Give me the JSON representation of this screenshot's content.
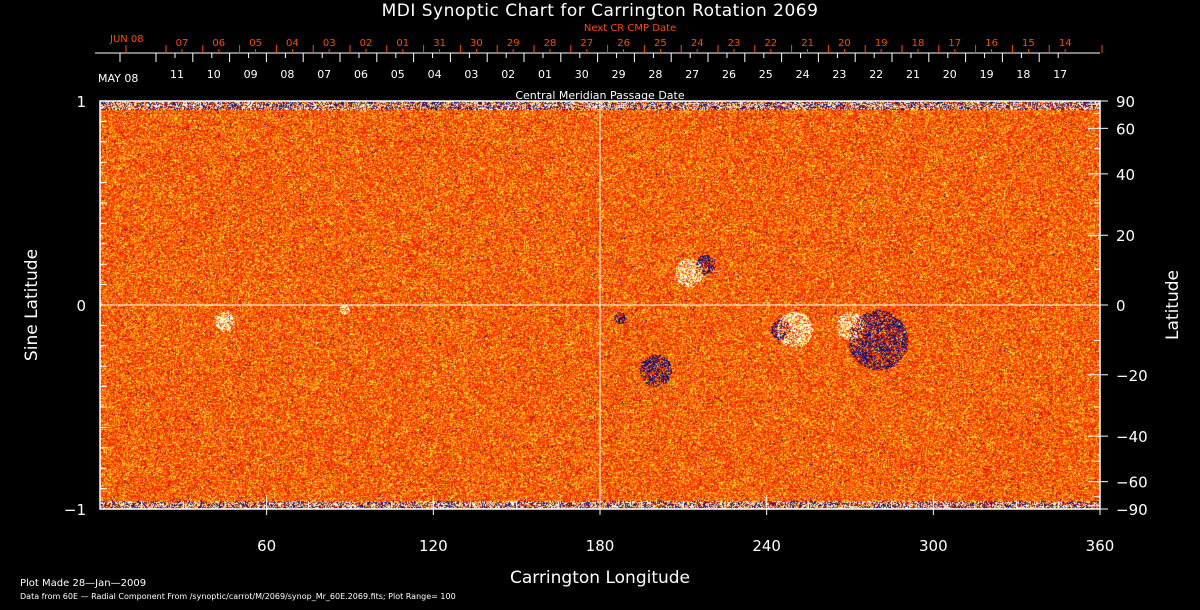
{
  "chart_data": {
    "type": "heatmap",
    "title": "MDI Synoptic Chart for Carrington Rotation 2069",
    "xlabel": "Carrington Longitude",
    "ylabel": "Sine Latitude",
    "y2label": "Latitude",
    "xlim": [
      0,
      360
    ],
    "ylim": [
      -1,
      1
    ],
    "x_ticks": [
      "60",
      "120",
      "180",
      "240",
      "300",
      "360"
    ],
    "x_tick_values": [
      60,
      120,
      180,
      240,
      300,
      360
    ],
    "y_ticks": [
      "1",
      "0",
      "−1"
    ],
    "y_tick_values": [
      1,
      0,
      -1
    ],
    "y2_ticks": [
      "90",
      "60",
      "40",
      "20",
      "0",
      "−20",
      "−40",
      "−60",
      "−90"
    ],
    "y2_tick_values": [
      90,
      60,
      40,
      20,
      0,
      -20,
      -40,
      -60,
      -90
    ],
    "plot_range": 100,
    "colors": {
      "background": "#ff3c00",
      "positive": "#ffffff",
      "negative": "#10107a",
      "mid": "#ffa000"
    },
    "grid": "crosshair at 180 longitude and 0 latitude",
    "top_axis": {
      "label": "Central Meridian Passage Date",
      "start_label": "MAY 08",
      "dates": [
        "11",
        "10",
        "09",
        "08",
        "07",
        "06",
        "05",
        "04",
        "03",
        "02",
        "01",
        "30",
        "29",
        "28",
        "27",
        "26",
        "25",
        "24",
        "23",
        "22",
        "21",
        "20",
        "19",
        "18",
        "17"
      ]
    },
    "next_cr_axis": {
      "label": "Next CR CMP Date",
      "start_label": "JUN 08",
      "dates": [
        "07",
        "06",
        "05",
        "04",
        "03",
        "02",
        "01",
        "31",
        "30",
        "29",
        "28",
        "27",
        "26",
        "25",
        "24",
        "23",
        "22",
        "21",
        "20",
        "19",
        "18",
        "17",
        "16",
        "15",
        "14"
      ],
      "color": "#ff4a00"
    }
  },
  "footer": {
    "plot_made": "Plot Made 28—Jan—2009",
    "data_source": "Data from 60E — Radial Component From /synoptic/carrot/M/2069/synop_Mr_60E.2069.fits; Plot Range=  100"
  }
}
